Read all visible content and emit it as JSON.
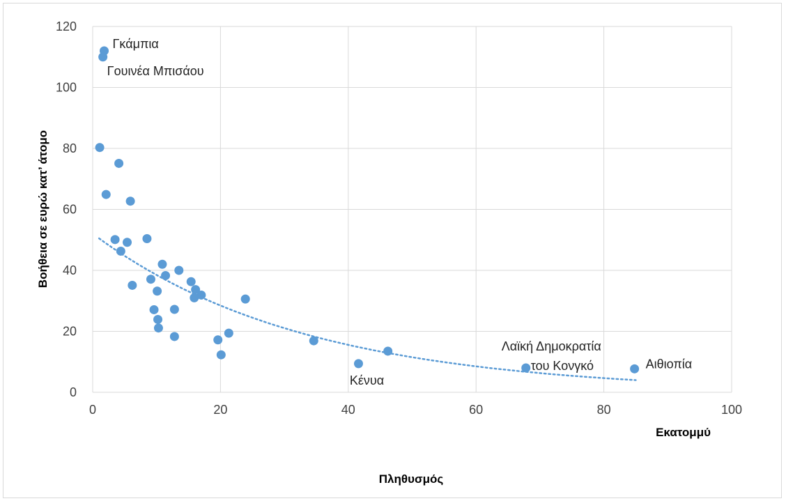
{
  "chart_data": {
    "type": "scatter",
    "title": "",
    "xlabel": "Πληθυσμός",
    "x_unit_label": "Εκατομμύ",
    "ylabel": "Βοήθεια σε ευρώ κατ’ άτομο",
    "xlim": [
      0,
      100
    ],
    "ylim": [
      0,
      120
    ],
    "x_ticks": [
      0,
      20,
      40,
      60,
      80,
      100
    ],
    "y_ticks": [
      0,
      20,
      40,
      60,
      80,
      100,
      120
    ],
    "grid": true,
    "legend": "none",
    "colors": {
      "marker": "#5b9bd5",
      "trendline": "#5b9bd5",
      "grid": "#d9d9d9"
    },
    "trendline": {
      "type": "exponential",
      "style": "dotted",
      "x_range": [
        1,
        85
      ],
      "points": [
        [
          1,
          50.5
        ],
        [
          85,
          4
        ]
      ]
    },
    "points": [
      {
        "x": 1.8,
        "y": 112
      },
      {
        "x": 1.6,
        "y": 110
      },
      {
        "x": 1.1,
        "y": 80.3
      },
      {
        "x": 4.1,
        "y": 75.1
      },
      {
        "x": 2.1,
        "y": 64.9
      },
      {
        "x": 5.9,
        "y": 62.7
      },
      {
        "x": 8.5,
        "y": 50.4
      },
      {
        "x": 3.5,
        "y": 50.1
      },
      {
        "x": 5.4,
        "y": 49.2
      },
      {
        "x": 4.4,
        "y": 46.3
      },
      {
        "x": 10.9,
        "y": 42
      },
      {
        "x": 13.5,
        "y": 40
      },
      {
        "x": 11.4,
        "y": 38.3
      },
      {
        "x": 9.1,
        "y": 37.1
      },
      {
        "x": 15.4,
        "y": 36.3
      },
      {
        "x": 6.2,
        "y": 35.1
      },
      {
        "x": 16.1,
        "y": 33.7
      },
      {
        "x": 10.1,
        "y": 33.2
      },
      {
        "x": 17.0,
        "y": 31.9
      },
      {
        "x": 15.9,
        "y": 31
      },
      {
        "x": 23.9,
        "y": 30.6
      },
      {
        "x": 9.6,
        "y": 27.1
      },
      {
        "x": 12.8,
        "y": 27.2
      },
      {
        "x": 10.2,
        "y": 23.9
      },
      {
        "x": 10.3,
        "y": 21.1
      },
      {
        "x": 21.3,
        "y": 19.4
      },
      {
        "x": 12.8,
        "y": 18.3
      },
      {
        "x": 19.6,
        "y": 17.2
      },
      {
        "x": 34.6,
        "y": 16.9
      },
      {
        "x": 46.2,
        "y": 13.5
      },
      {
        "x": 20.1,
        "y": 12.3
      },
      {
        "x": 41.6,
        "y": 9.4
      },
      {
        "x": 67.8,
        "y": 8
      },
      {
        "x": 84.8,
        "y": 7.7
      }
    ],
    "annotations": [
      {
        "text": "Γκάμπια",
        "x": 1.8,
        "y": 112
      },
      {
        "text": "Γουινέα Μπισάου",
        "x": 1.6,
        "y": 110
      },
      {
        "text": "Κένυα",
        "x": 41.6,
        "y": 9.4
      },
      {
        "text": "Λαϊκή Δημοκρατία",
        "x": 67.8,
        "y": 8
      },
      {
        "text": "του Κονγκό",
        "x": 67.8,
        "y": 8
      },
      {
        "text": "Αιθιοπία",
        "x": 84.8,
        "y": 7.7
      }
    ]
  }
}
